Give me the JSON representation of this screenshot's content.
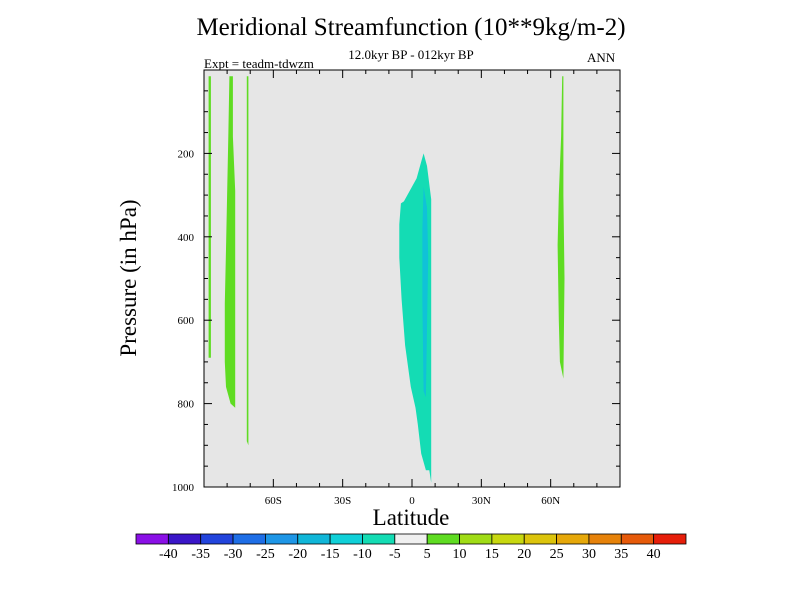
{
  "chart_data": {
    "type": "contour",
    "title": "Meridional Streamfunction (10**9kg/m-2)",
    "subtitle": "12.0kyr BP - 012kyr BP",
    "experiment_label": "Expt = teadm-tdwzm",
    "season": "ANN",
    "xlabel": "Latitude",
    "ylabel": "Pressure (in hPa)",
    "xlim": [
      -90,
      90
    ],
    "ylim": [
      1000,
      0
    ],
    "x_ticks": [
      {
        "value": -60,
        "label": "60S"
      },
      {
        "value": -30,
        "label": "30S"
      },
      {
        "value": 0,
        "label": "0"
      },
      {
        "value": 30,
        "label": "30N"
      },
      {
        "value": 60,
        "label": "60N"
      }
    ],
    "y_ticks": [
      {
        "value": 200,
        "label": "200"
      },
      {
        "value": 400,
        "label": "400"
      },
      {
        "value": 600,
        "label": "600"
      },
      {
        "value": 800,
        "label": "800"
      },
      {
        "value": 1000,
        "label": "1000"
      }
    ],
    "background_color": "#e6e6e6",
    "regions": [
      {
        "name": "sh-polar-positive",
        "level": "5 to 10",
        "color": "#5fdc22",
        "points": [
          [
            -88,
            15
          ],
          [
            -87,
            15
          ],
          [
            -87,
            690
          ],
          [
            -88,
            690
          ]
        ]
      },
      {
        "name": "sh-subpolar-positive",
        "level": "5 to 10",
        "color": "#5fdc22",
        "points": [
          [
            -79,
            15
          ],
          [
            -77.5,
            15
          ],
          [
            -77.5,
            160
          ],
          [
            -76.5,
            290
          ],
          [
            -76.5,
            810
          ],
          [
            -78.5,
            800
          ],
          [
            -80.5,
            760
          ],
          [
            -81,
            700
          ],
          [
            -81,
            560
          ],
          [
            -80.5,
            430
          ],
          [
            -80,
            300
          ],
          [
            -79.5,
            160
          ]
        ]
      },
      {
        "name": "sh-narrow-positive",
        "level": "5 to 10",
        "color": "#5fdc22",
        "points": [
          [
            -71.5,
            15
          ],
          [
            -70.8,
            15
          ],
          [
            -70.8,
            900
          ],
          [
            -71.5,
            890
          ]
        ]
      },
      {
        "name": "eq-negative",
        "level": "-10 to -5",
        "color": "#14dcb4",
        "points": [
          [
            5,
            200
          ],
          [
            6.5,
            230
          ],
          [
            8.3,
            310
          ],
          [
            8.3,
            990
          ],
          [
            7.5,
            960
          ],
          [
            6,
            960
          ],
          [
            4,
            920
          ],
          [
            2.5,
            850
          ],
          [
            1.5,
            810
          ],
          [
            -0.5,
            760
          ],
          [
            -3,
            660
          ],
          [
            -4.5,
            550
          ],
          [
            -5.5,
            450
          ],
          [
            -5.5,
            370
          ],
          [
            -4.8,
            320
          ],
          [
            -3.5,
            315
          ],
          [
            -1,
            290
          ],
          [
            2,
            260
          ],
          [
            4,
            220
          ]
        ]
      },
      {
        "name": "eq-negative-inner",
        "level": "-15 to -10",
        "color": "#10c2d8",
        "points": [
          [
            5,
            280
          ],
          [
            6.5,
            330
          ],
          [
            7,
            450
          ],
          [
            6.5,
            620
          ],
          [
            6,
            785
          ],
          [
            5,
            770
          ],
          [
            4.5,
            560
          ],
          [
            4.5,
            380
          ]
        ]
      },
      {
        "name": "nh-polar-positive",
        "level": "5 to 10",
        "color": "#5fdc22",
        "points": [
          [
            65,
            15
          ],
          [
            65.5,
            15
          ],
          [
            65.5,
            300
          ],
          [
            66,
            500
          ],
          [
            65.5,
            740
          ],
          [
            64,
            700
          ],
          [
            63.5,
            600
          ],
          [
            63,
            420
          ],
          [
            63.5,
            300
          ],
          [
            64.5,
            160
          ]
        ]
      }
    ],
    "colorbar": {
      "colors": [
        "#8a10e6",
        "#3a16c8",
        "#2244dc",
        "#1e6ee6",
        "#1e96e6",
        "#10b6d8",
        "#10d0d8",
        "#14dcb4",
        "#f0f0f0",
        "#5fdc22",
        "#a0dc16",
        "#c8d810",
        "#dcc40c",
        "#e6a80a",
        "#e6820a",
        "#e65a0a",
        "#e61e0a"
      ],
      "labels": [
        "-40",
        "-35",
        "-30",
        "-25",
        "-20",
        "-15",
        "-10",
        "-5",
        "5",
        "10",
        "15",
        "20",
        "25",
        "30",
        "35",
        "40"
      ]
    }
  }
}
